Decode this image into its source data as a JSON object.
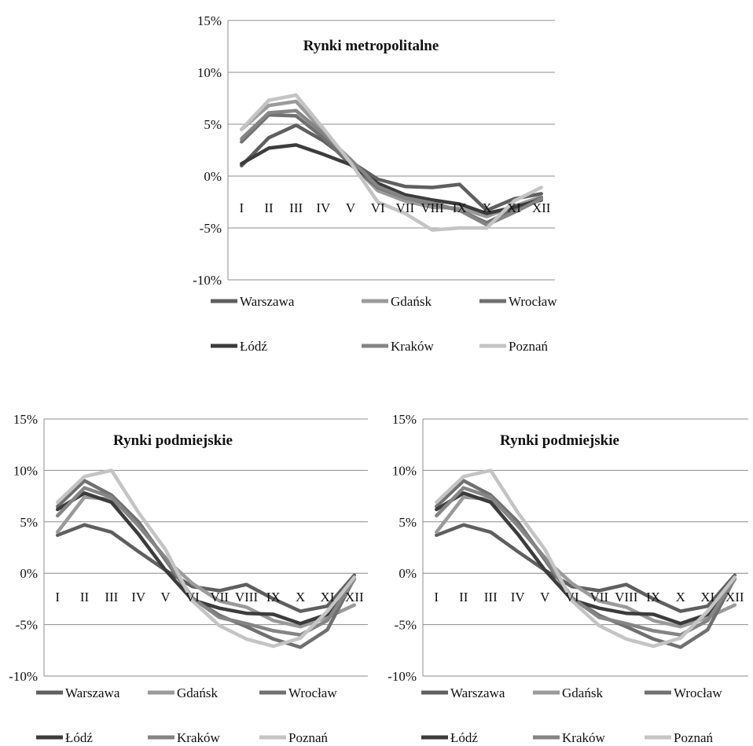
{
  "chart_data": [
    {
      "type": "line",
      "title": "Rynki metropolitalne",
      "categories": [
        "I",
        "II",
        "III",
        "IV",
        "V",
        "VI",
        "VII",
        "VIII",
        "IX",
        "X",
        "XI",
        "XII"
      ],
      "y_ticks": [
        "15%",
        "10%",
        "5%",
        "0%",
        "-5%",
        "-10%"
      ],
      "ylim": [
        -10,
        15
      ],
      "grid": true,
      "legend_position": "bottom",
      "series": [
        {
          "name": "Warszawa",
          "color": "#5f5f5f",
          "values": [
            1.0,
            3.7,
            4.9,
            3.4,
            1.4,
            -0.3,
            -1.0,
            -1.1,
            -0.8,
            -3.3,
            -2.2,
            -1.7
          ]
        },
        {
          "name": "Gdańsk",
          "color": "#9a9a9a",
          "values": [
            4.5,
            6.8,
            7.2,
            4.3,
            1.3,
            -1.4,
            -2.4,
            -3.0,
            -3.1,
            -3.9,
            -2.9,
            -2.0
          ]
        },
        {
          "name": "Wrocław",
          "color": "#707070",
          "values": [
            3.3,
            5.9,
            5.8,
            3.7,
            1.1,
            -1.1,
            -2.1,
            -2.7,
            -3.3,
            -4.5,
            -3.2,
            -2.1
          ]
        },
        {
          "name": "Łódź",
          "color": "#3c3c3c",
          "values": [
            1.2,
            2.7,
            3.0,
            2.1,
            1.1,
            -0.7,
            -1.8,
            -2.3,
            -2.7,
            -3.6,
            -3.0,
            -2.3
          ]
        },
        {
          "name": "Kraków",
          "color": "#858585",
          "values": [
            3.6,
            6.1,
            6.3,
            4.1,
            1.6,
            -1.0,
            -2.1,
            -2.6,
            -3.3,
            -4.7,
            -3.5,
            -2.2
          ]
        },
        {
          "name": "Poznań",
          "color": "#c4c4c4",
          "values": [
            4.5,
            7.3,
            7.8,
            4.6,
            1.3,
            -2.5,
            -3.6,
            -5.2,
            -5.0,
            -5.0,
            -2.4,
            -1.1
          ]
        }
      ]
    },
    {
      "type": "line",
      "title": "Rynki podmiejskie",
      "categories": [
        "I",
        "II",
        "III",
        "IV",
        "V",
        "VI",
        "VII",
        "VIII",
        "IX",
        "X",
        "XI",
        "XII"
      ],
      "y_ticks": [
        "15%",
        "10%",
        "5%",
        "0%",
        "-5%",
        "-10%"
      ],
      "ylim": [
        -10,
        15
      ],
      "grid": true,
      "legend_position": "bottom",
      "series": [
        {
          "name": "Warszawa",
          "color": "#5f5f5f",
          "values": [
            3.7,
            4.7,
            4.0,
            2.1,
            0.3,
            -1.3,
            -1.7,
            -1.1,
            -2.5,
            -3.7,
            -3.2,
            -0.2
          ]
        },
        {
          "name": "Gdańsk",
          "color": "#9a9a9a",
          "values": [
            4.0,
            7.4,
            7.2,
            4.8,
            1.4,
            -1.0,
            -2.7,
            -3.3,
            -4.6,
            -5.2,
            -4.3,
            -3.1
          ]
        },
        {
          "name": "Wrocław",
          "color": "#707070",
          "values": [
            6.5,
            9.0,
            7.6,
            5.0,
            1.3,
            -2.4,
            -4.1,
            -5.2,
            -6.4,
            -7.2,
            -5.5,
            -0.5
          ]
        },
        {
          "name": "Łódź",
          "color": "#3c3c3c",
          "values": [
            6.2,
            7.8,
            6.9,
            3.8,
            0.3,
            -2.6,
            -3.4,
            -3.9,
            -4.0,
            -4.9,
            -4.0,
            -0.5
          ]
        },
        {
          "name": "Kraków",
          "color": "#858585",
          "values": [
            5.6,
            8.3,
            7.4,
            4.6,
            1.5,
            -2.4,
            -4.3,
            -4.9,
            -5.6,
            -6.0,
            -4.6,
            -0.6
          ]
        },
        {
          "name": "Poznań",
          "color": "#c4c4c4",
          "values": [
            6.9,
            9.4,
            10.0,
            5.9,
            2.3,
            -2.7,
            -5.1,
            -6.4,
            -7.1,
            -6.3,
            -3.7,
            -0.4
          ]
        }
      ]
    },
    {
      "type": "line",
      "title": "Rynki podmiejskie",
      "categories": [
        "I",
        "II",
        "III",
        "IV",
        "V",
        "VI",
        "VII",
        "VIII",
        "IX",
        "X",
        "XI",
        "XII"
      ],
      "y_ticks": [
        "15%",
        "10%",
        "5%",
        "0%",
        "-5%",
        "-10%"
      ],
      "ylim": [
        -10,
        15
      ],
      "grid": true,
      "legend_position": "bottom",
      "series": [
        {
          "name": "Warszawa",
          "color": "#5f5f5f",
          "values": [
            3.7,
            4.7,
            4.0,
            2.1,
            0.3,
            -1.3,
            -1.7,
            -1.1,
            -2.5,
            -3.7,
            -3.2,
            -0.2
          ]
        },
        {
          "name": "Gdańsk",
          "color": "#9a9a9a",
          "values": [
            4.0,
            7.4,
            7.2,
            4.8,
            1.4,
            -1.0,
            -2.7,
            -3.3,
            -4.6,
            -5.2,
            -4.3,
            -3.1
          ]
        },
        {
          "name": "Wrocław",
          "color": "#707070",
          "values": [
            6.5,
            9.0,
            7.6,
            5.0,
            1.3,
            -2.4,
            -4.1,
            -5.2,
            -6.4,
            -7.2,
            -5.5,
            -0.5
          ]
        },
        {
          "name": "Łódź",
          "color": "#3c3c3c",
          "values": [
            6.2,
            7.8,
            6.9,
            3.8,
            0.3,
            -2.6,
            -3.4,
            -3.9,
            -4.0,
            -4.9,
            -4.0,
            -0.5
          ]
        },
        {
          "name": "Kraków",
          "color": "#858585",
          "values": [
            5.6,
            8.3,
            7.4,
            4.6,
            1.5,
            -2.4,
            -4.3,
            -4.9,
            -5.6,
            -6.0,
            -4.6,
            -0.6
          ]
        },
        {
          "name": "Poznań",
          "color": "#c4c4c4",
          "values": [
            6.9,
            9.4,
            10.0,
            5.9,
            2.3,
            -2.7,
            -5.1,
            -6.4,
            -7.1,
            -6.3,
            -3.7,
            -0.4
          ]
        }
      ]
    }
  ]
}
